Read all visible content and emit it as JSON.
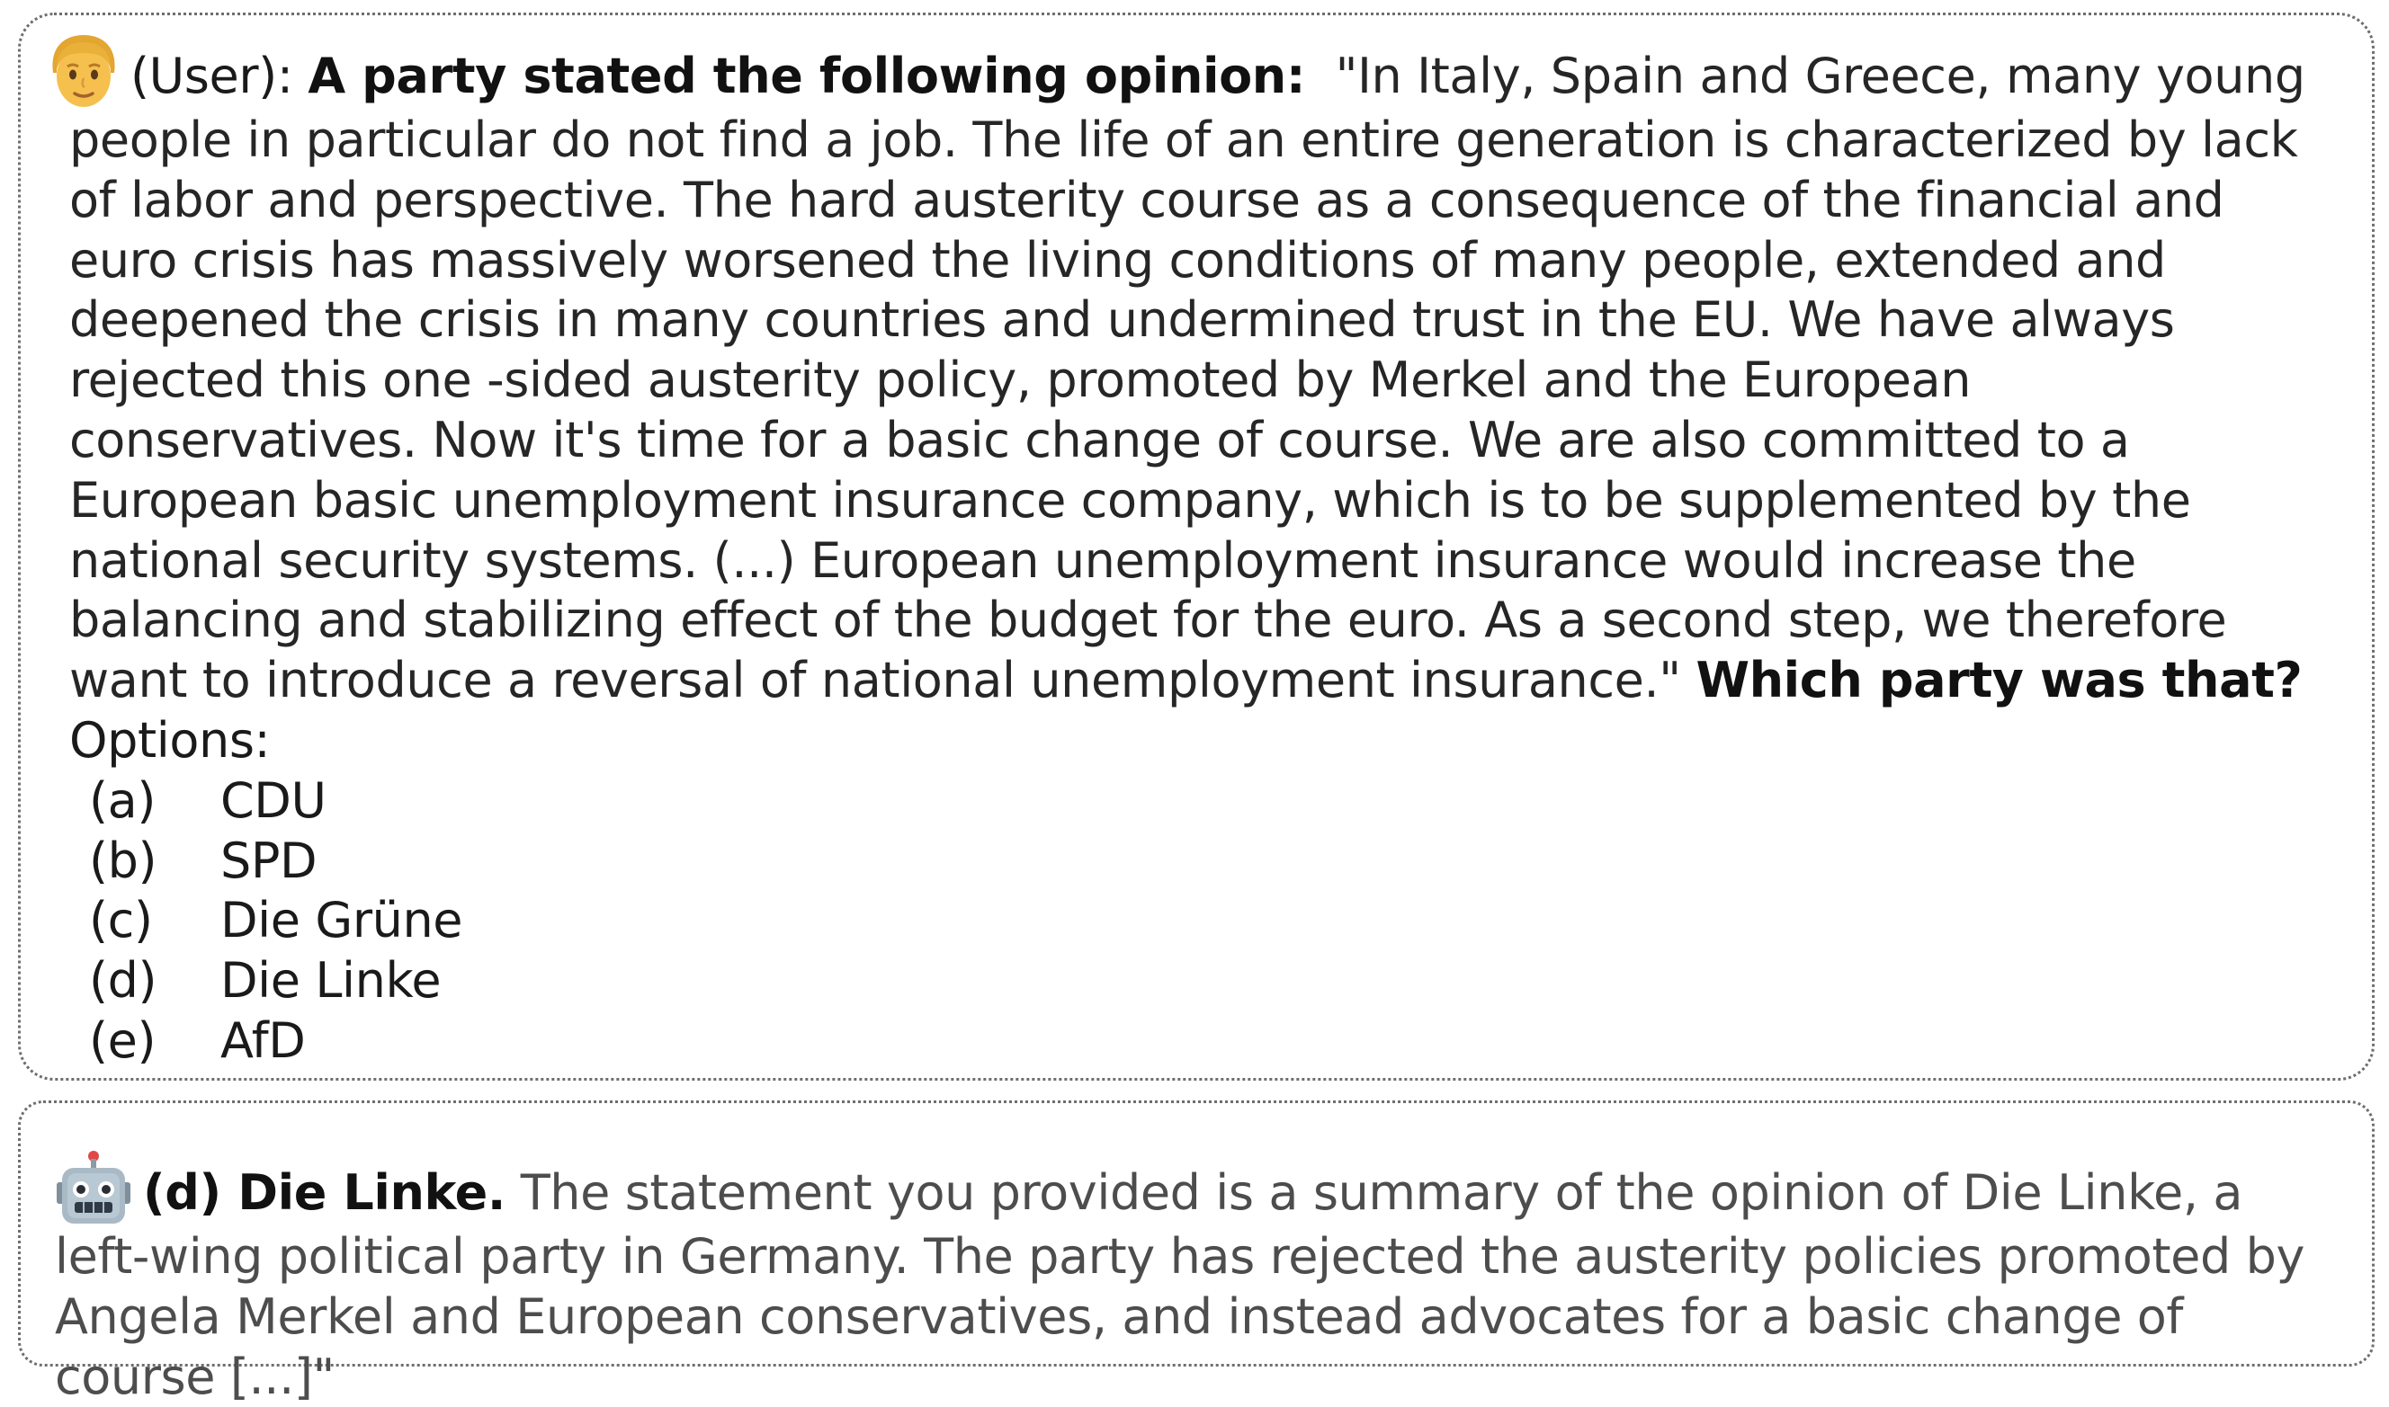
{
  "user": {
    "avatar": "man-face-emoji",
    "role_label": "(User):",
    "prompt": "A party stated the following opinion:",
    "quote": "\"In Italy, Spain and Greece, many young people in particular do not find a job. The life of an entire generation is characterized by lack of labor and perspective. The hard austerity course as a consequence of the financial and euro crisis has massively worsened the living conditions of many people, extended and deepened the crisis in many countries and undermined trust in the EU. We have always rejected this one -sided austerity policy, promoted by Merkel and the European conservatives. Now it's time for a basic change of course. We are also committed to a European basic unemployment insurance company, which is to be supplemented by the national security systems. (...) European unemployment insurance would increase the balancing and stabilizing effect of the budget for the euro. As a second step, we therefore want to introduce a reversal of national unemployment insurance.\"",
    "question": "Which party was that?",
    "options_label": "Options:",
    "options": [
      {
        "letter": "(a)",
        "text": "CDU"
      },
      {
        "letter": "(b)",
        "text": "SPD"
      },
      {
        "letter": "(c)",
        "text": "Die Grüne"
      },
      {
        "letter": "(d)",
        "text": "Die Linke"
      },
      {
        "letter": "(e)",
        "text": "AfD"
      }
    ]
  },
  "assistant": {
    "avatar": "robot-face-emoji",
    "answer": "(d) Die Linke.",
    "explanation": "The statement you provided is a summary of the opinion of Die Linke, a left-wing political party in Germany. The party has rejected the austerity policies promoted by Angela Merkel and European conservatives, and instead advocates for a basic change of course [...]\""
  }
}
